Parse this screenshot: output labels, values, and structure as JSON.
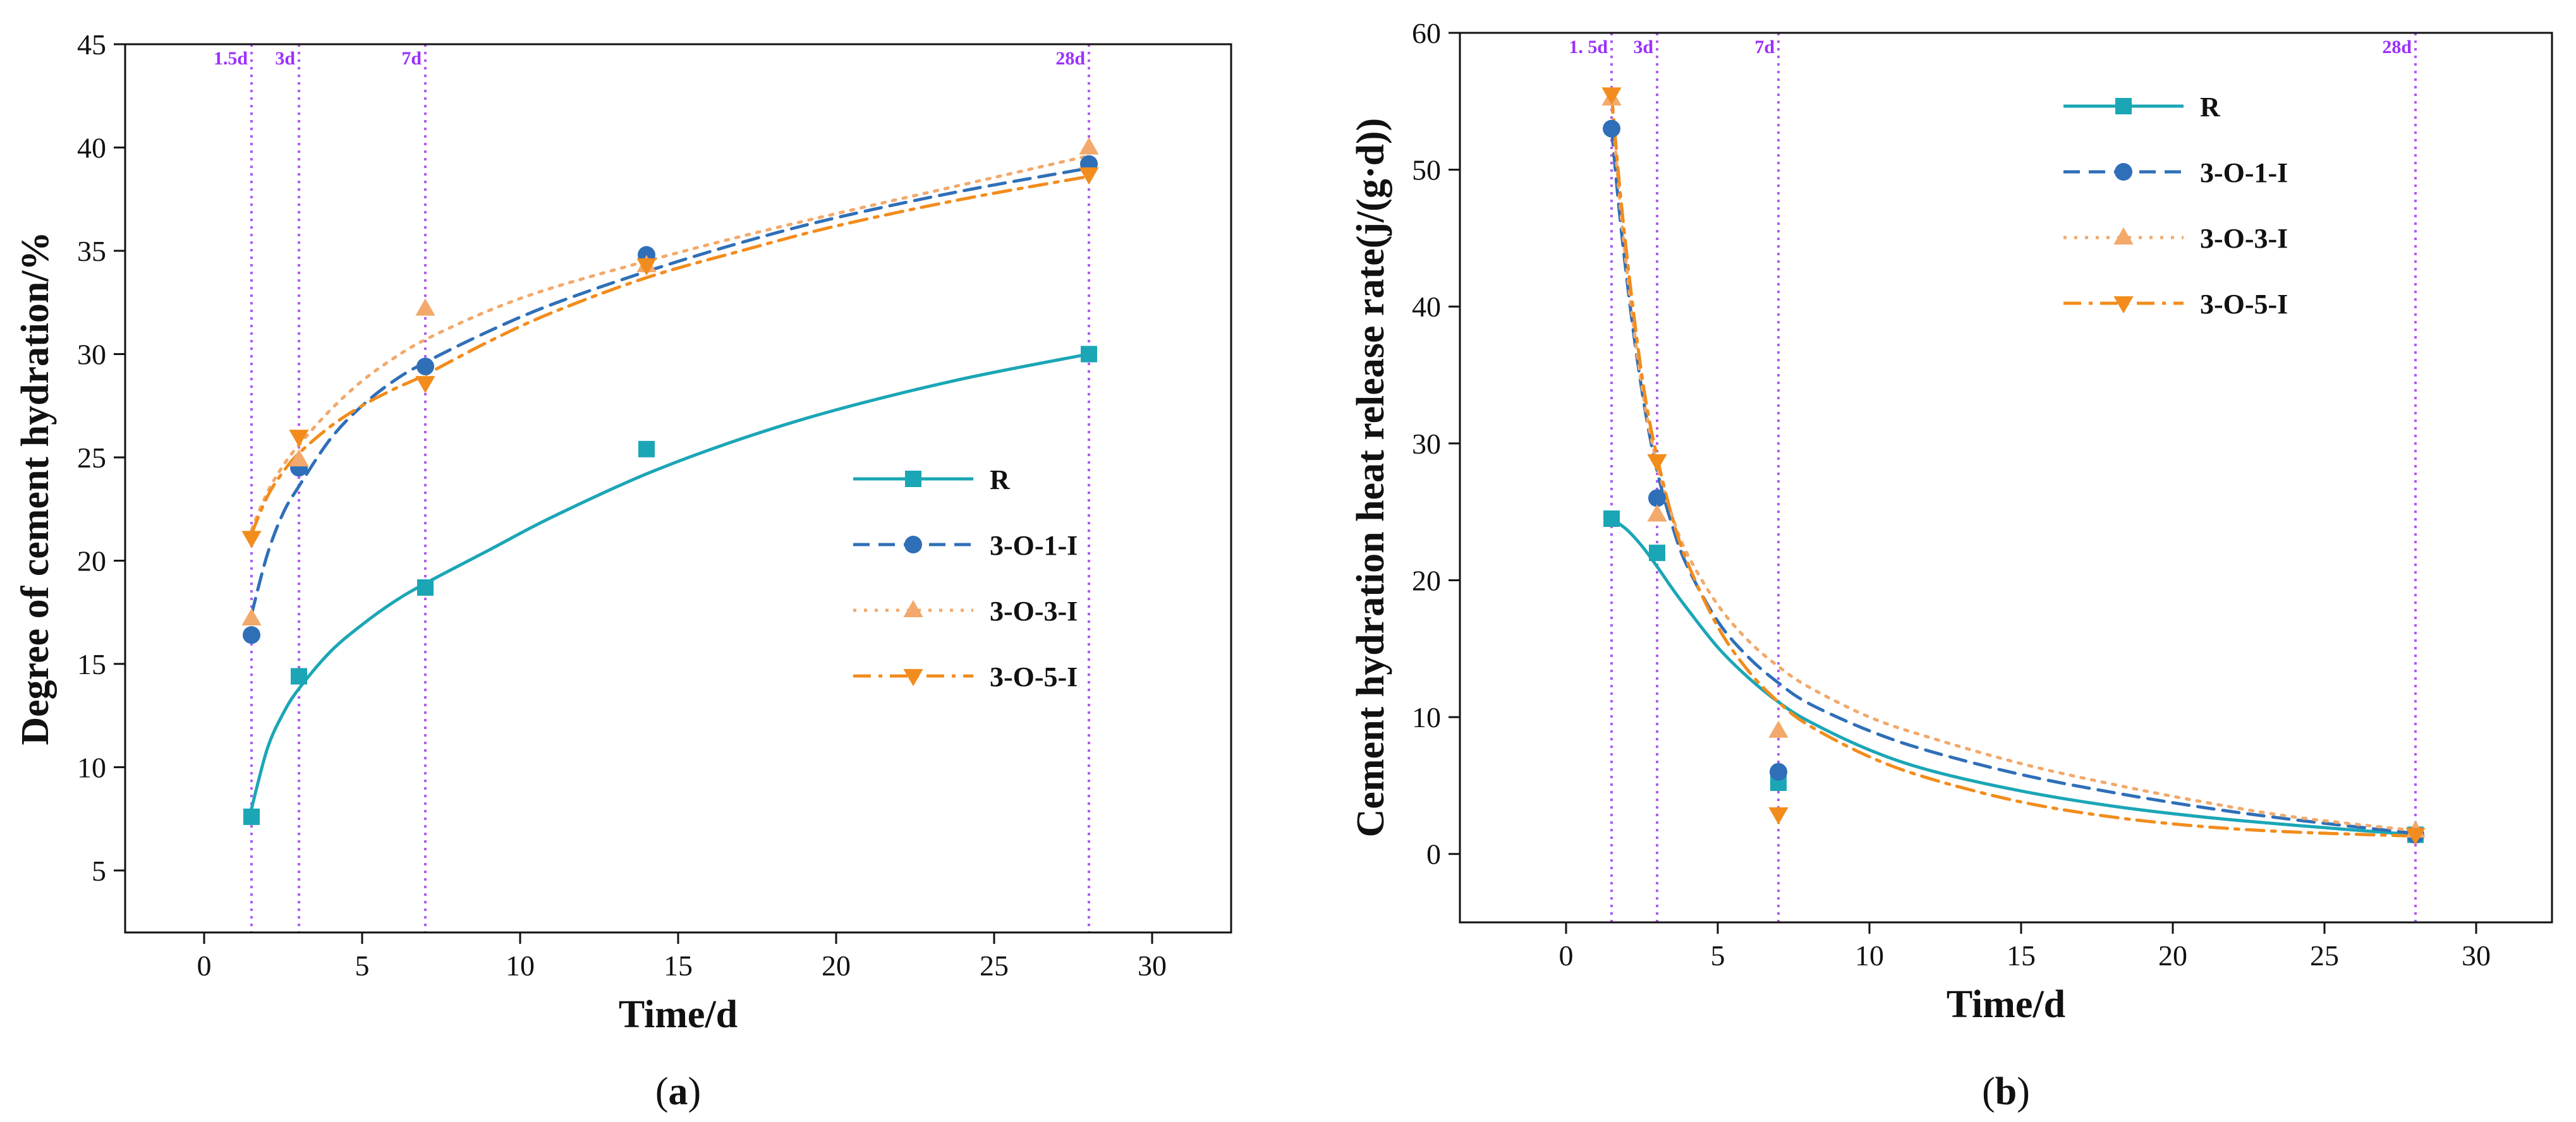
{
  "colors": {
    "R": "#1ba6b6",
    "O1": "#2f6fb8",
    "O3": "#f2a96b",
    "O5": "#f28c1c",
    "vline": "#b05cf5",
    "vlabel": "#9b30ff"
  },
  "chart_data": [
    {
      "id": "a",
      "type": "scatter",
      "caption_letter": "a",
      "caption_open": "(",
      "caption_close": ")",
      "xlabel": "Time/d",
      "ylabel": "Degree of cement hydration/%",
      "xlim": [
        -2.5,
        32.5
      ],
      "ylim": [
        2,
        45
      ],
      "xticks": [
        0,
        5,
        10,
        15,
        20,
        25,
        30
      ],
      "yticks": [
        5,
        10,
        15,
        20,
        25,
        30,
        35,
        40,
        45
      ],
      "legend_position": "center-right",
      "vlines": [
        {
          "x": 1.5,
          "label": "1.5d"
        },
        {
          "x": 3,
          "label": "3d"
        },
        {
          "x": 7,
          "label": "7d"
        },
        {
          "x": 28,
          "label": "28d"
        }
      ],
      "series": [
        {
          "name": "R",
          "key": "R",
          "marker": "square",
          "dash": "solid",
          "x": [
            1.5,
            3,
            7,
            14,
            28
          ],
          "y": [
            7.6,
            14.4,
            18.7,
            25.4,
            30.0
          ],
          "fit": {
            "x": [
              1.5,
              2,
              2.5,
              3,
              4,
              5,
              6,
              7,
              9,
              11,
              14,
              17,
              20,
              24,
              28
            ],
            "y": [
              8.0,
              10.9,
              12.6,
              13.8,
              15.6,
              16.9,
              18.0,
              18.9,
              20.5,
              22.1,
              24.2,
              25.9,
              27.3,
              28.8,
              30.0
            ]
          }
        },
        {
          "name": "3-O-1-I",
          "key": "O1",
          "marker": "circle",
          "dash": "dashed",
          "x": [
            1.5,
            3,
            7,
            14,
            28
          ],
          "y": [
            16.4,
            24.5,
            29.4,
            34.8,
            39.2
          ],
          "fit": {
            "x": [
              1.5,
              2,
              2.5,
              3,
              4,
              5,
              6,
              7,
              9,
              11,
              14,
              17,
              20,
              24,
              28
            ],
            "y": [
              17.4,
              20.3,
              22.3,
              23.6,
              25.9,
              27.5,
              28.7,
              29.6,
              31.1,
              32.4,
              34.0,
              35.4,
              36.6,
              37.9,
              39.0
            ]
          }
        },
        {
          "name": "3-O-3-I",
          "key": "O3",
          "marker": "triangle-up",
          "dash": "dotted",
          "x": [
            1.5,
            3,
            7,
            14,
            28
          ],
          "y": [
            17.2,
            24.9,
            32.2,
            34.3,
            40.0
          ],
          "fit": {
            "x": [
              1.5,
              2,
              2.5,
              3,
              4,
              5,
              6,
              7,
              9,
              11,
              14,
              17,
              20,
              24,
              28
            ],
            "y": [
              21.5,
              23.3,
              24.6,
              25.6,
              27.3,
              28.7,
              29.8,
              30.7,
              32.1,
              33.2,
              34.5,
              35.7,
              36.8,
              38.2,
              39.6
            ]
          }
        },
        {
          "name": "3-O-5-I",
          "key": "O5",
          "marker": "triangle-down",
          "dash": "dashdot",
          "x": [
            1.5,
            3,
            7,
            14,
            28
          ],
          "y": [
            21.1,
            26.0,
            28.6,
            34.3,
            38.7
          ],
          "fit": {
            "x": [
              1.5,
              2,
              2.5,
              3,
              4,
              5,
              6,
              7,
              9,
              11,
              14,
              17,
              20,
              24,
              28
            ],
            "y": [
              21.3,
              23.1,
              24.3,
              25.2,
              26.5,
              27.5,
              28.3,
              29.0,
              30.6,
              32.0,
              33.7,
              35.0,
              36.2,
              37.5,
              38.6
            ]
          }
        }
      ]
    },
    {
      "id": "b",
      "type": "scatter",
      "caption_letter": "b",
      "caption_open": "(",
      "caption_close": ")",
      "xlabel": "Time/d",
      "ylabel": "Cement hydration heat release rate(j/(g·d))",
      "xlim": [
        -3.5,
        32.5
      ],
      "ylim": [
        -5,
        60
      ],
      "xticks": [
        0,
        5,
        10,
        15,
        20,
        25,
        30
      ],
      "yticks": [
        0,
        10,
        20,
        30,
        40,
        50,
        60
      ],
      "legend_position": "top-center",
      "vlines": [
        {
          "x": 1.5,
          "label": "1. 5d"
        },
        {
          "x": 3,
          "label": "3d"
        },
        {
          "x": 7,
          "label": "7d"
        },
        {
          "x": 28,
          "label": "28d"
        }
      ],
      "series": [
        {
          "name": "R",
          "key": "R",
          "marker": "square",
          "dash": "solid",
          "x": [
            1.5,
            3,
            7,
            28
          ],
          "y": [
            24.5,
            22.0,
            5.2,
            1.4
          ],
          "fit": {
            "x": [
              1.5,
              2,
              2.5,
              3,
              3.5,
              4,
              5,
              6,
              7,
              8,
              10,
              12,
              15,
              18,
              21,
              24,
              28
            ],
            "y": [
              24.5,
              23.7,
              22.5,
              21.0,
              19.4,
              17.9,
              15.1,
              12.9,
              11.1,
              9.7,
              7.6,
              6.1,
              4.6,
              3.5,
              2.7,
              2.1,
              1.4
            ]
          }
        },
        {
          "name": "3-O-1-I",
          "key": "O1",
          "marker": "circle",
          "dash": "dashed",
          "x": [
            1.5,
            3,
            7,
            28
          ],
          "y": [
            53.0,
            26.0,
            6.0,
            1.4
          ],
          "fit": {
            "x": [
              1.5,
              1.8,
              2.2,
              2.6,
              3,
              3.5,
              4,
              5,
              6,
              7,
              8,
              10,
              12,
              15,
              18,
              21,
              24,
              28
            ],
            "y": [
              53.0,
              46.0,
              38.5,
              32.5,
              28.0,
              24.0,
              21.0,
              17.0,
              14.4,
              12.5,
              11.0,
              9.0,
              7.5,
              5.8,
              4.5,
              3.4,
              2.5,
              1.5
            ]
          }
        },
        {
          "name": "3-O-3-I",
          "key": "O3",
          "marker": "triangle-up",
          "dash": "dotted",
          "x": [
            1.5,
            3,
            7,
            28
          ],
          "y": [
            55.2,
            24.8,
            9.0,
            1.7
          ],
          "fit": {
            "x": [
              1.5,
              1.8,
              2.2,
              2.6,
              3,
              3.5,
              4,
              5,
              6,
              7,
              8,
              10,
              12,
              15,
              18,
              21,
              24,
              28
            ],
            "y": [
              55.2,
              47.0,
              39.0,
              32.8,
              28.5,
              24.7,
              21.9,
              18.2,
              15.6,
              13.7,
              12.2,
              10.0,
              8.5,
              6.6,
              5.1,
              3.8,
              2.7,
              1.7
            ]
          }
        },
        {
          "name": "3-O-5-I",
          "key": "O5",
          "marker": "triangle-down",
          "dash": "dashdot",
          "x": [
            1.5,
            3,
            7,
            28
          ],
          "y": [
            55.5,
            28.7,
            2.9,
            1.4
          ],
          "fit": {
            "x": [
              1.5,
              1.8,
              2.2,
              2.6,
              3,
              3.5,
              4,
              5,
              6,
              7,
              8,
              10,
              12,
              15,
              18,
              21,
              24,
              28
            ],
            "y": [
              55.5,
              48.0,
              40.0,
              33.5,
              29.0,
              24.6,
              21.3,
              16.6,
              13.4,
              11.1,
              9.4,
              7.1,
              5.5,
              3.8,
              2.7,
              2.0,
              1.6,
              1.3
            ]
          }
        }
      ]
    }
  ]
}
